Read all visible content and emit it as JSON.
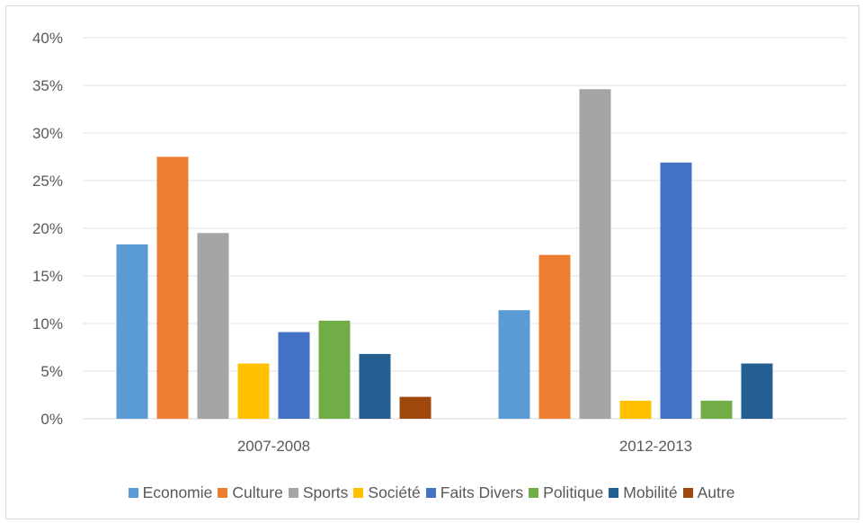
{
  "chart_data": {
    "type": "bar",
    "title": "",
    "xlabel": "",
    "ylabel": "",
    "categories": [
      "2007-2008",
      "2012-2013"
    ],
    "y_ticks": [
      "0%",
      "5%",
      "10%",
      "15%",
      "20%",
      "25%",
      "30%",
      "35%",
      "40%"
    ],
    "ylim": [
      0,
      40
    ],
    "grid": true,
    "legend_position": "bottom",
    "series": [
      {
        "name": "Economie",
        "color": "#5b9bd5",
        "values": [
          18.3,
          11.4
        ]
      },
      {
        "name": "Culture",
        "color": "#ed7d31",
        "values": [
          27.5,
          17.2
        ]
      },
      {
        "name": "Sports",
        "color": "#a5a5a5",
        "values": [
          19.5,
          34.6
        ]
      },
      {
        "name": "Société",
        "color": "#ffc000",
        "values": [
          5.8,
          1.9
        ]
      },
      {
        "name": "Faits Divers",
        "color": "#4472c4",
        "values": [
          9.1,
          26.9
        ]
      },
      {
        "name": "Politique",
        "color": "#70ad47",
        "values": [
          10.3,
          1.9
        ]
      },
      {
        "name": "Mobilité",
        "color": "#255e91",
        "values": [
          6.8,
          5.8
        ]
      },
      {
        "name": "Autre",
        "color": "#9e480e",
        "values": [
          2.3,
          null
        ]
      }
    ]
  }
}
